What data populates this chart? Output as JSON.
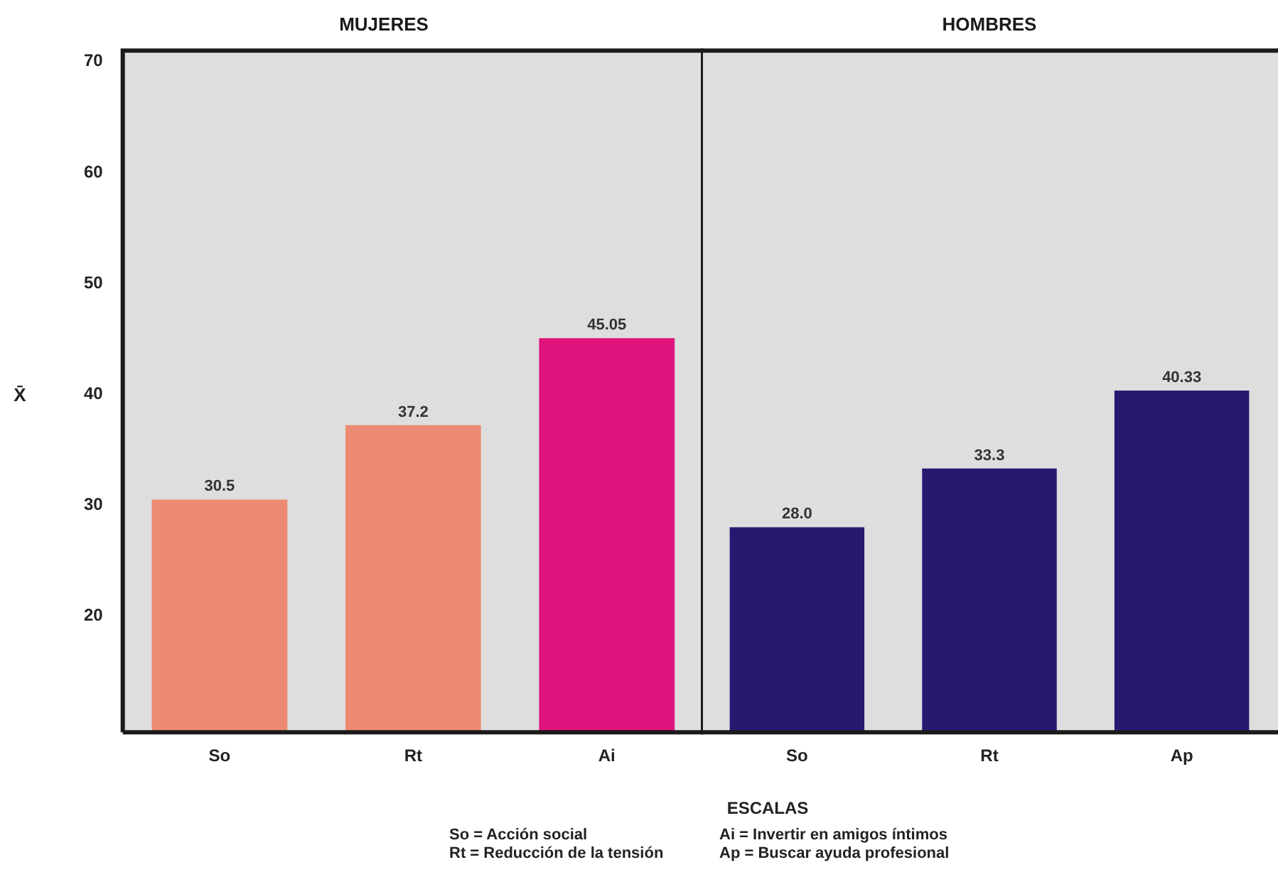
{
  "chart_data": [
    {
      "type": "bar",
      "title": "MUJERES",
      "ylabel": "X̄",
      "categories": [
        "So",
        "Rt",
        "Ai"
      ],
      "values": [
        30.5,
        37.2,
        45.05
      ],
      "value_labels": [
        "30.5",
        "37.2",
        "45.05"
      ],
      "colors": [
        "#ec8a72",
        "#ec8a72",
        "#df137c"
      ],
      "ylim": [
        9.5,
        71
      ],
      "yticks": [
        20,
        30,
        40,
        50,
        60,
        70
      ],
      "legend": false,
      "annotations": [
        "ESCALAS",
        "So = Acción social",
        "Ai = Invertir en amigos íntimos",
        "Rt = Reducción de la tensión",
        "Ap = Buscar ayuda profesional"
      ]
    },
    {
      "type": "bar",
      "title": "HOMBRES",
      "categories": [
        "So",
        "Rt",
        "Ap"
      ],
      "values": [
        28.0,
        33.3,
        40.33
      ],
      "value_labels": [
        "28.0",
        "33.3",
        "40.33"
      ],
      "colors": [
        "#291870",
        "#291870",
        "#291870"
      ],
      "ylim": [
        9.5,
        71
      ],
      "yticks": [
        20,
        30,
        40,
        50,
        60,
        70
      ],
      "legend": false,
      "tick_labels": "x"
    }
  ]
}
